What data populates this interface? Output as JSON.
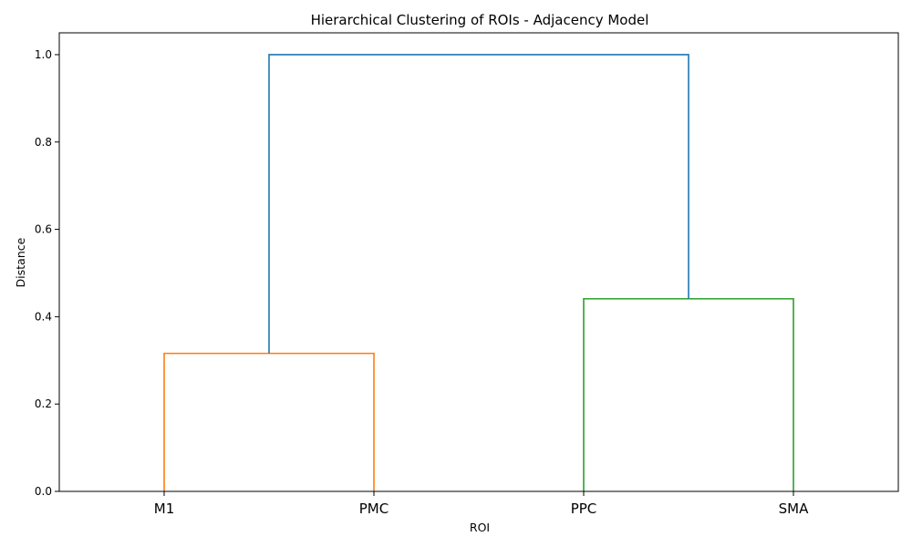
{
  "chart_data": {
    "type": "dendrogram",
    "title": "Hierarchical Clustering of ROIs - Adjacency Model",
    "xlabel": "ROI",
    "ylabel": "Distance",
    "ylim": [
      0,
      1.05
    ],
    "yticks": [
      0.0,
      0.2,
      0.4,
      0.6,
      0.8,
      1.0
    ],
    "ytick_labels": [
      "0.0",
      "0.2",
      "0.4",
      "0.6",
      "0.8",
      "1.0"
    ],
    "leaves": [
      "M1",
      "PMC",
      "PPC",
      "SMA"
    ],
    "merges": [
      {
        "left": "M1",
        "right": "PMC",
        "distance": 0.316,
        "color": "#ff7f0e"
      },
      {
        "left": "PPC",
        "right": "SMA",
        "distance": 0.441,
        "color": "#2ca02c"
      },
      {
        "left": "cluster(M1,PMC)",
        "right": "cluster(PPC,SMA)",
        "distance": 1.0,
        "color": "#1f77b4"
      }
    ],
    "grid": false,
    "legend": "none"
  }
}
